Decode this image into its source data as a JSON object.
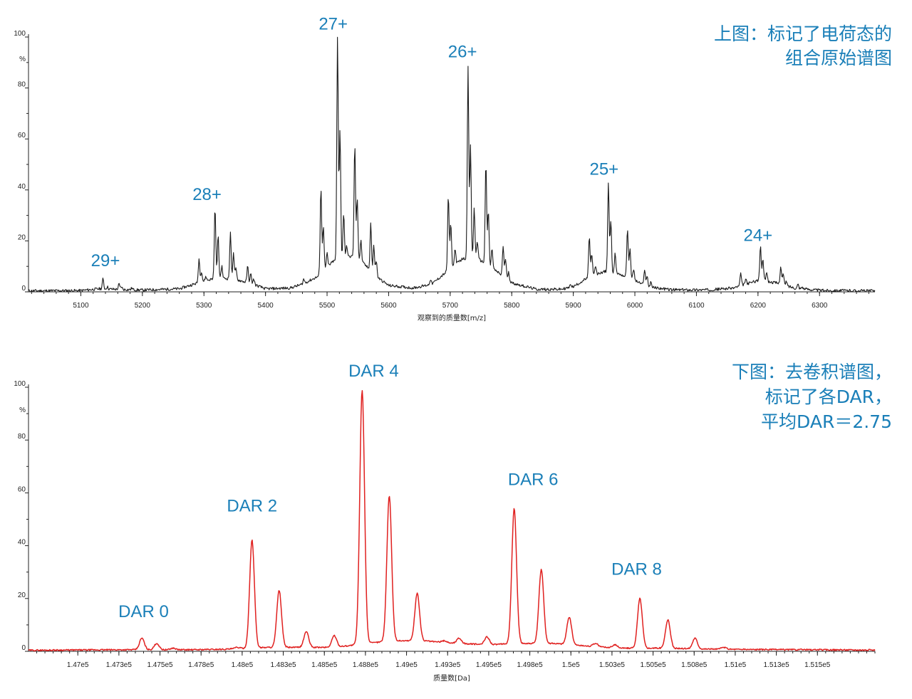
{
  "chart_data": [
    {
      "type": "line",
      "line_color": "#1a1a1a",
      "xlim": [
        5015,
        6390
      ],
      "ylim": [
        0,
        100
      ],
      "x_ticks": [
        5100,
        5200,
        5300,
        5400,
        5500,
        5600,
        5700,
        5800,
        5900,
        6000,
        6100,
        6200,
        6300
      ],
      "x_tick_labels": [
        "5100",
        "5200",
        "5300",
        "5400",
        "5500",
        "5600",
        "5700",
        "5800",
        "5900",
        "6000",
        "6100",
        "6200",
        "6300"
      ],
      "y_ticks": [
        0,
        20,
        40,
        60,
        80,
        100
      ],
      "y_unit": "%",
      "xlabel": "观察到的质量数[m/z]",
      "note_lines": [
        "上图：标记了电荷态的",
        "组合原始谱图"
      ],
      "annotations": [
        {
          "text": "29+",
          "x": 5140,
          "y": 10
        },
        {
          "text": "28+",
          "x": 5305,
          "y": 36
        },
        {
          "text": "27+",
          "x": 5510,
          "y": 103
        },
        {
          "text": "26+",
          "x": 5720,
          "y": 92
        },
        {
          "text": "25+",
          "x": 5950,
          "y": 46
        },
        {
          "text": "24+",
          "x": 6200,
          "y": 20
        }
      ],
      "baseline": [
        [
          5015,
          0.4
        ],
        [
          5100,
          0.5
        ],
        [
          5130,
          1.2
        ],
        [
          5200,
          0.7
        ],
        [
          5260,
          1.2
        ],
        [
          5290,
          3.5
        ],
        [
          5320,
          5.5
        ],
        [
          5350,
          5
        ],
        [
          5380,
          3
        ],
        [
          5400,
          1.2
        ],
        [
          5440,
          1.5
        ],
        [
          5460,
          3
        ],
        [
          5485,
          6
        ],
        [
          5510,
          12
        ],
        [
          5540,
          14
        ],
        [
          5560,
          11
        ],
        [
          5580,
          6
        ],
        [
          5600,
          2.5
        ],
        [
          5640,
          1.5
        ],
        [
          5670,
          3
        ],
        [
          5695,
          8
        ],
        [
          5720,
          13
        ],
        [
          5745,
          13
        ],
        [
          5770,
          9
        ],
        [
          5800,
          3.5
        ],
        [
          5840,
          1
        ],
        [
          5880,
          1
        ],
        [
          5900,
          2
        ],
        [
          5920,
          5
        ],
        [
          5950,
          8
        ],
        [
          5975,
          7
        ],
        [
          6000,
          4.5
        ],
        [
          6020,
          2
        ],
        [
          6060,
          0.8
        ],
        [
          6120,
          0.8
        ],
        [
          6160,
          1.5
        ],
        [
          6180,
          3
        ],
        [
          6200,
          4.5
        ],
        [
          6230,
          3.5
        ],
        [
          6260,
          1.5
        ],
        [
          6300,
          0.6
        ],
        [
          6390,
          0.4
        ]
      ],
      "peaks": [
        [
          5136,
          5
        ],
        [
          5143,
          2
        ],
        [
          5162,
          3
        ],
        [
          5166,
          2
        ],
        [
          5183,
          1.5
        ],
        [
          5292,
          13
        ],
        [
          5296,
          8
        ],
        [
          5303,
          6
        ],
        [
          5318,
          33
        ],
        [
          5323,
          22
        ],
        [
          5329,
          10
        ],
        [
          5343,
          23
        ],
        [
          5348,
          15
        ],
        [
          5352,
          9
        ],
        [
          5371,
          10
        ],
        [
          5376,
          7
        ],
        [
          5381,
          5
        ],
        [
          5462,
          5
        ],
        [
          5490,
          41
        ],
        [
          5494,
          26
        ],
        [
          5500,
          15
        ],
        [
          5517,
          100
        ],
        [
          5521,
          64
        ],
        [
          5527,
          31
        ],
        [
          5532,
          18
        ],
        [
          5545,
          58
        ],
        [
          5549,
          37
        ],
        [
          5555,
          20
        ],
        [
          5571,
          27
        ],
        [
          5576,
          18
        ],
        [
          5580,
          12
        ],
        [
          5668,
          5
        ],
        [
          5697,
          38
        ],
        [
          5701,
          27
        ],
        [
          5708,
          17
        ],
        [
          5729,
          88
        ],
        [
          5733,
          57
        ],
        [
          5739,
          33
        ],
        [
          5744,
          20
        ],
        [
          5758,
          51
        ],
        [
          5762,
          32
        ],
        [
          5768,
          17
        ],
        [
          5786,
          18
        ],
        [
          5790,
          13
        ],
        [
          5795,
          8
        ],
        [
          5896,
          3
        ],
        [
          5926,
          22
        ],
        [
          5930,
          15
        ],
        [
          5936,
          10
        ],
        [
          5957,
          43
        ],
        [
          5961,
          28
        ],
        [
          5968,
          15
        ],
        [
          5988,
          25
        ],
        [
          5992,
          17
        ],
        [
          5998,
          9
        ],
        [
          6016,
          9
        ],
        [
          6020,
          6
        ],
        [
          6026,
          4
        ],
        [
          6172,
          7
        ],
        [
          6180,
          5
        ],
        [
          6204,
          18
        ],
        [
          6208,
          13
        ],
        [
          6214,
          8
        ],
        [
          6237,
          10
        ],
        [
          6241,
          7
        ],
        [
          6246,
          4
        ],
        [
          6265,
          3
        ],
        [
          6272,
          2
        ]
      ]
    },
    {
      "type": "line",
      "line_color": "#e0201f",
      "xlim": [
        146700,
        151850
      ],
      "ylim": [
        0,
        100
      ],
      "x_ticks": [
        147000,
        147250,
        147500,
        147750,
        148000,
        148250,
        148500,
        148750,
        149000,
        149250,
        149500,
        149750,
        150000,
        150250,
        150500,
        150750,
        151000,
        151250,
        151500
      ],
      "x_tick_labels": [
        "1.47e5",
        "1.473e5",
        "1.475e5",
        "1.478e5",
        "1.48e5",
        "1.483e5",
        "1.485e5",
        "1.488e5",
        "1.49e5",
        "1.493e5",
        "1.495e5",
        "1.498e5",
        "1.5e5",
        "1.503e5",
        "1.505e5",
        "1.508e5",
        "1.51e5",
        "1.513e5",
        "1.515e5"
      ],
      "y_ticks": [
        0,
        20,
        40,
        60,
        80,
        100
      ],
      "y_unit": "%",
      "xlabel": "质量数[Da]",
      "note_lines": [
        "下图：去卷积谱图，",
        "标记了各DAR，",
        "平均DAR＝2.75"
      ],
      "annotations": [
        {
          "text": "DAR 0",
          "x": 147400,
          "y": 13
        },
        {
          "text": "DAR 2",
          "x": 148060,
          "y": 53
        },
        {
          "text": "DAR 4",
          "x": 148800,
          "y": 104
        },
        {
          "text": "DAR 6",
          "x": 149770,
          "y": 63
        },
        {
          "text": "DAR 8",
          "x": 150400,
          "y": 29
        }
      ],
      "baseline": [
        [
          146700,
          0.4
        ],
        [
          147000,
          0.5
        ],
        [
          147300,
          0.6
        ],
        [
          147700,
          0.6
        ],
        [
          147900,
          0.8
        ],
        [
          148150,
          1.5
        ],
        [
          148300,
          1.5
        ],
        [
          148550,
          1.5
        ],
        [
          148700,
          2.5
        ],
        [
          148900,
          4
        ],
        [
          149100,
          4
        ],
        [
          149300,
          3
        ],
        [
          149500,
          2.5
        ],
        [
          149700,
          3
        ],
        [
          149900,
          3
        ],
        [
          150100,
          2
        ],
        [
          150300,
          1.2
        ],
        [
          150550,
          1.2
        ],
        [
          150800,
          0.9
        ],
        [
          151100,
          0.7
        ],
        [
          151850,
          0.5
        ]
      ],
      "peaks": [
        [
          147390,
          5
        ],
        [
          147480,
          3
        ],
        [
          147580,
          1.2
        ],
        [
          147970,
          1.5
        ],
        [
          148060,
          42
        ],
        [
          148225,
          23
        ],
        [
          148390,
          7.5
        ],
        [
          148560,
          6
        ],
        [
          148730,
          99
        ],
        [
          148895,
          59
        ],
        [
          149065,
          22
        ],
        [
          149230,
          4
        ],
        [
          149320,
          5
        ],
        [
          149490,
          5.5
        ],
        [
          149655,
          54
        ],
        [
          149820,
          31
        ],
        [
          149990,
          13
        ],
        [
          150150,
          3
        ],
        [
          150270,
          2.5
        ],
        [
          150420,
          20
        ],
        [
          150590,
          12
        ],
        [
          150755,
          5
        ],
        [
          150930,
          1.5
        ]
      ]
    }
  ]
}
